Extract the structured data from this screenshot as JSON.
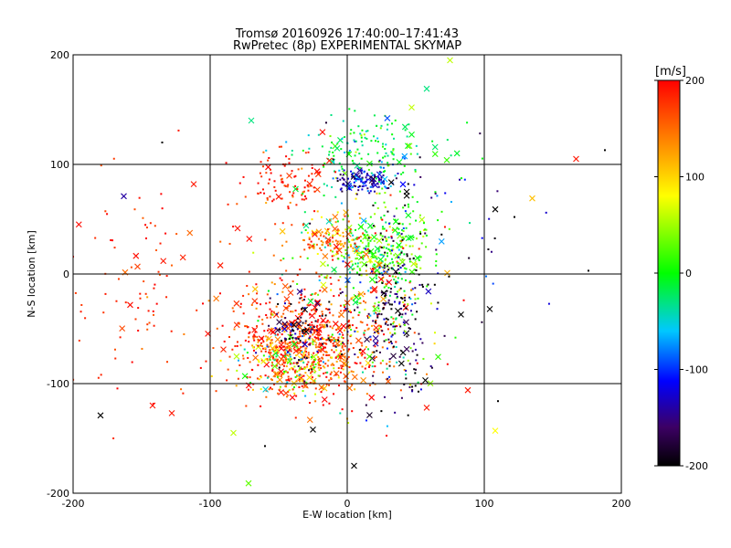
{
  "header": {
    "title": "Tromsø 20160926 17:40:00–17:41:43",
    "subtitle": "RwPretec (8p) EXPERIMENTAL SKYMAP"
  },
  "chart_data": {
    "type": "scatter",
    "title": "Tromsø 20160926 17:40:00–17:41:43",
    "subtitle": "RwPretec (8p) EXPERIMENTAL SKYMAP",
    "xlabel": "E-W location [km]",
    "ylabel": "N-S location [km]",
    "xlim": [
      -200,
      200
    ],
    "ylim": [
      -200,
      200
    ],
    "xticks": [
      -200,
      -100,
      0,
      100,
      200
    ],
    "yticks": [
      -200,
      -100,
      0,
      100,
      200
    ],
    "grid": true,
    "colorbar": {
      "unit": "[m/s]",
      "min": -200,
      "max": 200,
      "ticks": [
        -200,
        -100,
        0,
        100,
        200
      ]
    },
    "marker_note": "colour = velocity [m/s]; small dots and x markers",
    "clusters": [
      {
        "x": -30,
        "y": -60,
        "sx": 30,
        "sy": 25,
        "n": 650,
        "v": 175,
        "vs": 30
      },
      {
        "x": -38,
        "y": -80,
        "sx": 18,
        "sy": 15,
        "n": 220,
        "v": 90,
        "vs": 90
      },
      {
        "x": -35,
        "y": -55,
        "sx": 12,
        "sy": 18,
        "n": 90,
        "v": -170,
        "vs": 35
      },
      {
        "x": 25,
        "y": 20,
        "sx": 18,
        "sy": 20,
        "n": 280,
        "v": 15,
        "vs": 30
      },
      {
        "x": 5,
        "y": 25,
        "sx": 25,
        "sy": 28,
        "n": 150,
        "v": 60,
        "vs": 80
      },
      {
        "x": 15,
        "y": 110,
        "sx": 25,
        "sy": 18,
        "n": 170,
        "v": -20,
        "vs": 30
      },
      {
        "x": 15,
        "y": 85,
        "sx": 12,
        "sy": 5,
        "n": 120,
        "v": -130,
        "vs": 40
      },
      {
        "x": -45,
        "y": 85,
        "sx": 15,
        "sy": 15,
        "n": 100,
        "v": 185,
        "vs": 20
      },
      {
        "x": -10,
        "y": 28,
        "sx": 20,
        "sy": 8,
        "n": 90,
        "v": 150,
        "vs": 40
      },
      {
        "x": 35,
        "y": -40,
        "sx": 15,
        "sy": 45,
        "n": 180,
        "v": -180,
        "vs": 30
      },
      {
        "x": 20,
        "y": -55,
        "sx": 25,
        "sy": 30,
        "n": 120,
        "v": 60,
        "vs": 100
      },
      {
        "x": -150,
        "y": -10,
        "sx": 40,
        "sy": 50,
        "n": 110,
        "v": 185,
        "vs": 20
      },
      {
        "x": 60,
        "y": 50,
        "sx": 40,
        "sy": 50,
        "n": 60,
        "v": -150,
        "vs": 60
      }
    ],
    "points": [
      {
        "x": -180,
        "y": -129,
        "v": -200,
        "m": "x"
      },
      {
        "x": -135,
        "y": 120,
        "v": -200,
        "m": "dot"
      },
      {
        "x": -128,
        "y": -127,
        "v": 190,
        "m": "x"
      },
      {
        "x": -163,
        "y": 71,
        "v": -140,
        "m": "x"
      },
      {
        "x": -112,
        "y": 82,
        "v": 190,
        "m": "x"
      },
      {
        "x": -142,
        "y": -120,
        "v": 190,
        "m": "x"
      },
      {
        "x": -70,
        "y": 140,
        "v": -30,
        "m": "x"
      },
      {
        "x": 75,
        "y": 195,
        "v": 60,
        "m": "x"
      },
      {
        "x": 58,
        "y": 169,
        "v": -30,
        "m": "x"
      },
      {
        "x": 47,
        "y": 152,
        "v": 60,
        "m": "x"
      },
      {
        "x": 135,
        "y": 69,
        "v": 110,
        "m": "x"
      },
      {
        "x": 108,
        "y": 59,
        "v": -200,
        "m": "x"
      },
      {
        "x": 167,
        "y": 105,
        "v": 190,
        "m": "x"
      },
      {
        "x": 188,
        "y": 113,
        "v": -200,
        "m": "dot"
      },
      {
        "x": 176,
        "y": 3,
        "v": -200,
        "m": "dot"
      },
      {
        "x": 104,
        "y": -32,
        "v": -200,
        "m": "x"
      },
      {
        "x": 88,
        "y": -106,
        "v": 190,
        "m": "x"
      },
      {
        "x": 108,
        "y": -143,
        "v": 80,
        "m": "x"
      },
      {
        "x": 110,
        "y": -116,
        "v": -200,
        "m": "dot"
      },
      {
        "x": 5,
        "y": -175,
        "v": -200,
        "m": "x"
      },
      {
        "x": -72,
        "y": -191,
        "v": 30,
        "m": "x"
      },
      {
        "x": -83,
        "y": -145,
        "v": 60,
        "m": "x"
      },
      {
        "x": -60,
        "y": -157,
        "v": -200,
        "m": "dot"
      },
      {
        "x": -25,
        "y": -142,
        "v": -200,
        "m": "x"
      },
      {
        "x": 58,
        "y": -122,
        "v": 190,
        "m": "x"
      },
      {
        "x": 57,
        "y": -97,
        "v": -200,
        "m": "x"
      },
      {
        "x": 83,
        "y": -37,
        "v": -200,
        "m": "x"
      }
    ]
  }
}
